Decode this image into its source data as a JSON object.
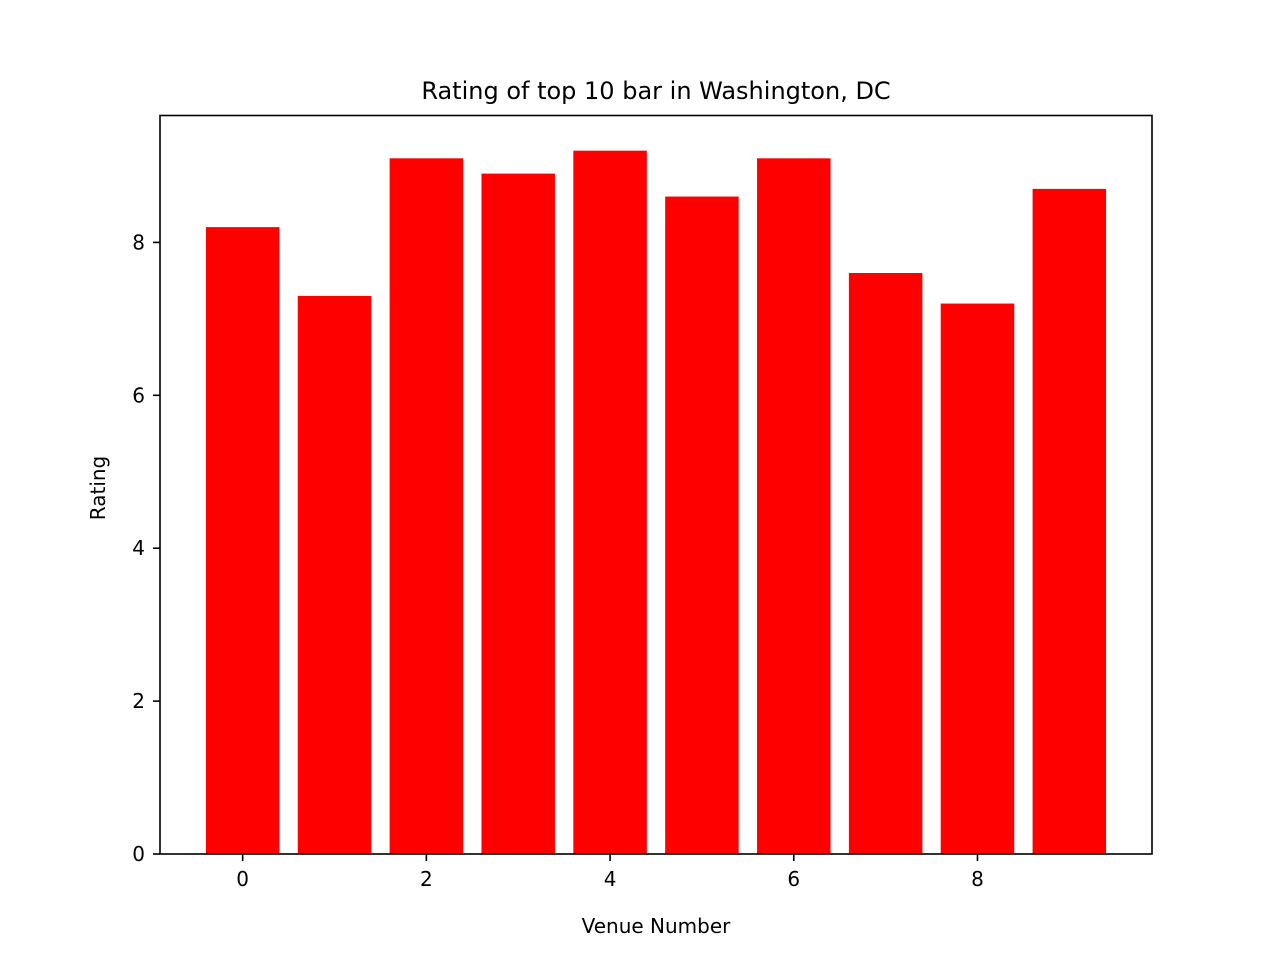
{
  "chart_data": {
    "type": "bar",
    "title": "Rating of top 10 bar in Washington, DC",
    "xlabel": "Venue Number",
    "ylabel": "Rating",
    "x": [
      0,
      1,
      2,
      3,
      4,
      5,
      6,
      7,
      8,
      9
    ],
    "values": [
      8.2,
      7.3,
      9.1,
      8.9,
      9.2,
      8.6,
      9.1,
      7.6,
      7.2,
      8.7
    ],
    "bar_color": "#ff0000",
    "xlim": [
      -0.9,
      9.9
    ],
    "ylim": [
      0,
      9.66
    ],
    "xticks": [
      0,
      2,
      4,
      6,
      8
    ],
    "yticks": [
      0,
      2,
      4,
      6,
      8
    ],
    "grid": false,
    "legend": "none"
  }
}
